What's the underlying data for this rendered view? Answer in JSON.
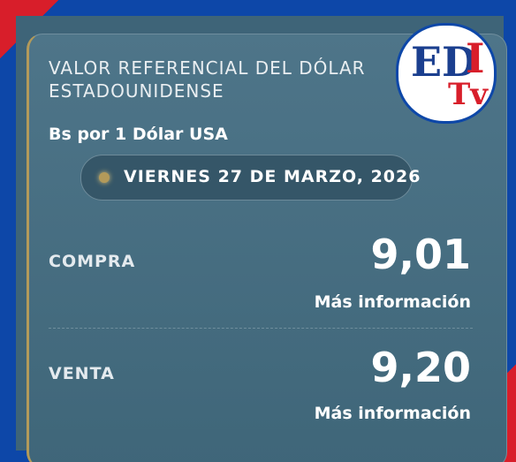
{
  "header": {
    "title_line1": "VALOR REFERENCIAL DEL DÓLAR",
    "title_line2": "ESTADOUNIDENSE",
    "subtitle": "Bs por 1 Dólar USA",
    "date": "VIERNES 27 DE MARZO, 2026"
  },
  "logo": {
    "main": "ED",
    "accent": "I",
    "sub": "Tv"
  },
  "rates": [
    {
      "label": "COMPRA",
      "value": "9,01",
      "link": "Más información"
    },
    {
      "label": "VENTA",
      "value": "9,20",
      "link": "Más información"
    }
  ]
}
